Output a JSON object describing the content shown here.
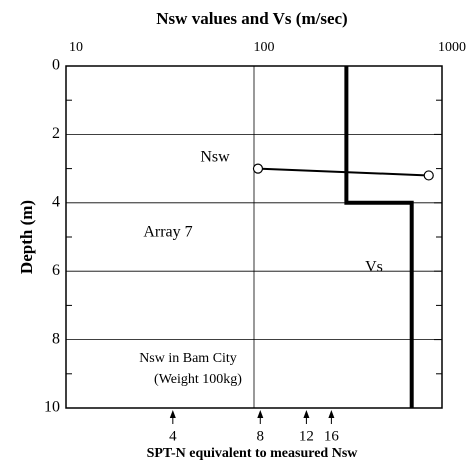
{
  "chart_data": {
    "type": "line",
    "title": "Nsw values and Vs (m/sec)",
    "y_label": "Depth (m)",
    "x_label": "SPT-N  equivalent to measured Nsw",
    "log_x": true,
    "xlim": [
      10,
      1000
    ],
    "xticks": [
      10,
      100,
      1000
    ],
    "ylim": [
      0,
      10
    ],
    "yticks": [
      0,
      2,
      4,
      6,
      8,
      10
    ],
    "minor_yticks": [
      1,
      3,
      5,
      7,
      9
    ],
    "grid": true,
    "series": [
      {
        "name": "Nsw",
        "color": "#000000",
        "marker": "circle",
        "x": [
          105,
          850
        ],
        "values": [
          3,
          3.2
        ]
      },
      {
        "name": "Vs",
        "color": "#000000",
        "marker": "none",
        "x": [
          310,
          310,
          690,
          690
        ],
        "values": [
          0,
          4,
          4,
          10
        ]
      }
    ],
    "x2ticks": [
      {
        "value": 37,
        "label": "4"
      },
      {
        "value": 108,
        "label": "8"
      },
      {
        "value": 190,
        "label": "12"
      },
      {
        "value": 258,
        "label": "16"
      }
    ],
    "annotations": [
      "Array 7",
      "Nsw in Bam City",
      "(Weight 100kg)"
    ]
  }
}
